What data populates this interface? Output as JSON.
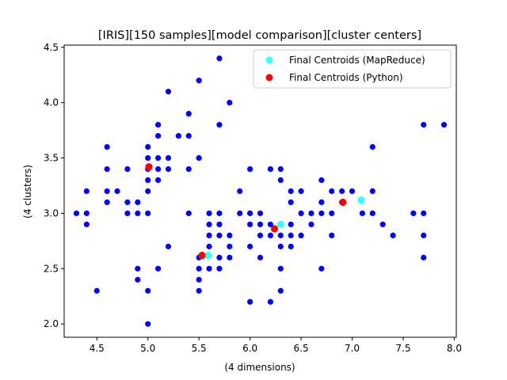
{
  "chart_data": {
    "type": "scatter",
    "title": "[IRIS][150 samples][model comparison][cluster centers]",
    "xlabel": "(4 dimensions)",
    "ylabel": "(4 clusters)",
    "xlim": [
      4.18,
      8.02
    ],
    "ylim": [
      1.88,
      4.52
    ],
    "xticks": [
      "4.5",
      "5.0",
      "5.5",
      "6.0",
      "6.5",
      "7.0",
      "7.5",
      "8.0"
    ],
    "xtick_values": [
      4.5,
      5.0,
      5.5,
      6.0,
      6.5,
      7.0,
      7.5,
      8.0
    ],
    "yticks": [
      "2.0",
      "2.5",
      "3.0",
      "3.5",
      "4.0",
      "4.5"
    ],
    "ytick_values": [
      2.0,
      2.5,
      3.0,
      3.5,
      4.0,
      4.5
    ],
    "grid": false,
    "legend_position": "top-right",
    "series": [
      {
        "color": "#0000ff",
        "points": [
          [
            4.3,
            3.0
          ],
          [
            4.4,
            3.2
          ],
          [
            4.4,
            3.0
          ],
          [
            4.4,
            2.9
          ],
          [
            4.5,
            2.3
          ],
          [
            4.6,
            3.6
          ],
          [
            4.6,
            3.4
          ],
          [
            4.6,
            3.2
          ],
          [
            4.6,
            3.1
          ],
          [
            4.7,
            3.2
          ],
          [
            4.8,
            3.4
          ],
          [
            4.8,
            3.1
          ],
          [
            4.8,
            3.0
          ],
          [
            4.9,
            3.1
          ],
          [
            4.9,
            3.0
          ],
          [
            4.9,
            2.5
          ],
          [
            4.9,
            2.4
          ],
          [
            5.0,
            3.6
          ],
          [
            5.0,
            3.5
          ],
          [
            5.0,
            3.4
          ],
          [
            5.0,
            3.3
          ],
          [
            5.0,
            3.2
          ],
          [
            5.0,
            3.0
          ],
          [
            5.0,
            2.3
          ],
          [
            5.0,
            2.0
          ],
          [
            5.1,
            3.8
          ],
          [
            5.1,
            3.7
          ],
          [
            5.1,
            3.5
          ],
          [
            5.1,
            3.4
          ],
          [
            5.1,
            3.3
          ],
          [
            5.1,
            2.5
          ],
          [
            5.2,
            4.1
          ],
          [
            5.2,
            3.5
          ],
          [
            5.2,
            3.4
          ],
          [
            5.2,
            2.7
          ],
          [
            5.3,
            3.7
          ],
          [
            5.4,
            3.9
          ],
          [
            5.4,
            3.7
          ],
          [
            5.4,
            3.4
          ],
          [
            5.4,
            3.0
          ],
          [
            5.5,
            4.2
          ],
          [
            5.5,
            3.5
          ],
          [
            5.5,
            2.6
          ],
          [
            5.5,
            2.5
          ],
          [
            5.5,
            2.4
          ],
          [
            5.5,
            2.3
          ],
          [
            5.6,
            3.0
          ],
          [
            5.6,
            2.9
          ],
          [
            5.6,
            2.8
          ],
          [
            5.6,
            2.7
          ],
          [
            5.6,
            2.5
          ],
          [
            5.7,
            4.4
          ],
          [
            5.7,
            3.8
          ],
          [
            5.7,
            3.0
          ],
          [
            5.7,
            2.9
          ],
          [
            5.7,
            2.8
          ],
          [
            5.7,
            2.6
          ],
          [
            5.7,
            2.5
          ],
          [
            5.8,
            4.0
          ],
          [
            5.8,
            2.8
          ],
          [
            5.8,
            2.7
          ],
          [
            5.8,
            2.6
          ],
          [
            5.9,
            3.2
          ],
          [
            5.9,
            3.0
          ],
          [
            6.0,
            3.4
          ],
          [
            6.0,
            3.0
          ],
          [
            6.0,
            2.9
          ],
          [
            6.0,
            2.7
          ],
          [
            6.0,
            2.2
          ],
          [
            6.1,
            3.0
          ],
          [
            6.1,
            2.9
          ],
          [
            6.1,
            2.8
          ],
          [
            6.1,
            2.6
          ],
          [
            6.2,
            3.4
          ],
          [
            6.2,
            2.9
          ],
          [
            6.2,
            2.8
          ],
          [
            6.2,
            2.2
          ],
          [
            6.3,
            3.4
          ],
          [
            6.3,
            3.3
          ],
          [
            6.3,
            2.9
          ],
          [
            6.3,
            2.8
          ],
          [
            6.3,
            2.7
          ],
          [
            6.3,
            2.5
          ],
          [
            6.3,
            2.3
          ],
          [
            6.4,
            3.2
          ],
          [
            6.4,
            3.1
          ],
          [
            6.4,
            2.9
          ],
          [
            6.4,
            2.8
          ],
          [
            6.4,
            2.7
          ],
          [
            6.5,
            3.2
          ],
          [
            6.5,
            3.0
          ],
          [
            6.5,
            2.8
          ],
          [
            6.6,
            3.0
          ],
          [
            6.6,
            2.9
          ],
          [
            6.7,
            3.3
          ],
          [
            6.7,
            3.1
          ],
          [
            6.7,
            3.0
          ],
          [
            6.7,
            2.5
          ],
          [
            6.8,
            3.2
          ],
          [
            6.8,
            3.0
          ],
          [
            6.8,
            2.8
          ],
          [
            6.9,
            3.2
          ],
          [
            6.9,
            3.1
          ],
          [
            7.0,
            3.2
          ],
          [
            7.1,
            3.0
          ],
          [
            7.2,
            3.6
          ],
          [
            7.2,
            3.2
          ],
          [
            7.2,
            3.0
          ],
          [
            7.3,
            2.9
          ],
          [
            7.4,
            2.8
          ],
          [
            7.6,
            3.0
          ],
          [
            7.7,
            3.8
          ],
          [
            7.7,
            3.0
          ],
          [
            7.7,
            2.8
          ],
          [
            7.7,
            2.6
          ],
          [
            7.9,
            3.8
          ]
        ]
      },
      {
        "name": "Final Centroids (MapReduce)",
        "color": "#33ffff",
        "points": [
          [
            5.01,
            3.42
          ],
          [
            5.59,
            2.62
          ],
          [
            6.3,
            2.9
          ],
          [
            7.09,
            3.12
          ]
        ]
      },
      {
        "name": "Final Centroids (Python)",
        "color": "#ff0000",
        "points": [
          [
            5.01,
            3.42
          ],
          [
            5.53,
            2.62
          ],
          [
            6.24,
            2.86
          ],
          [
            6.91,
            3.1
          ]
        ]
      }
    ]
  }
}
